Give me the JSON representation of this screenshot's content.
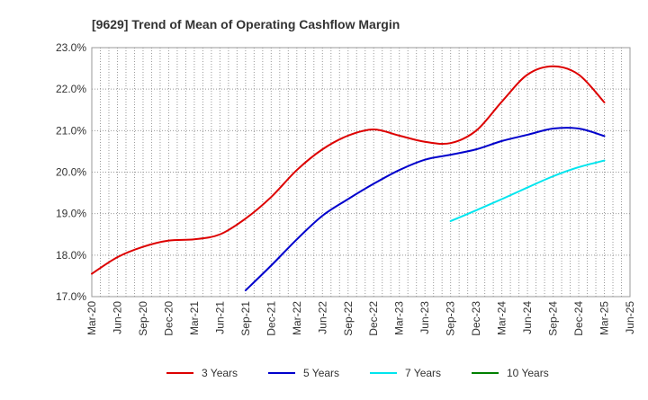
{
  "chart_data": {
    "type": "line",
    "title": "[9629]  Trend of Mean of Operating Cashflow Margin",
    "xlabel": "",
    "ylabel": "",
    "x_tick_labels": [
      "Mar-20",
      "Jun-20",
      "Sep-20",
      "Dec-20",
      "Mar-21",
      "Jun-21",
      "Sep-21",
      "Dec-21",
      "Mar-22",
      "Jun-22",
      "Sep-22",
      "Dec-22",
      "Mar-23",
      "Jun-23",
      "Sep-23",
      "Dec-23",
      "Mar-24",
      "Jun-24",
      "Sep-24",
      "Dec-24",
      "Mar-25",
      "Jun-25"
    ],
    "y_tick_labels": [
      "17.0%",
      "18.0%",
      "19.0%",
      "20.0%",
      "21.0%",
      "22.0%",
      "23.0%"
    ],
    "ylim": [
      17.0,
      23.0
    ],
    "grid": true,
    "legend_position": "bottom",
    "series": [
      {
        "name": "3 Years",
        "color": "#dd0000",
        "values": [
          17.55,
          17.95,
          18.2,
          18.35,
          18.38,
          18.5,
          18.88,
          19.4,
          20.05,
          20.55,
          20.88,
          21.03,
          20.88,
          20.73,
          20.7,
          21.0,
          21.7,
          22.35,
          22.55,
          22.35,
          21.68
        ]
      },
      {
        "name": "5 Years",
        "color": "#0000cc",
        "values": [
          null,
          null,
          null,
          null,
          null,
          null,
          17.15,
          17.75,
          18.38,
          18.95,
          19.35,
          19.72,
          20.05,
          20.3,
          20.42,
          20.55,
          20.75,
          20.9,
          21.05,
          21.05,
          20.87
        ]
      },
      {
        "name": "7 Years",
        "color": "#00e5ee",
        "values": [
          null,
          null,
          null,
          null,
          null,
          null,
          null,
          null,
          null,
          null,
          null,
          null,
          null,
          null,
          18.82,
          19.08,
          19.35,
          19.63,
          19.9,
          20.12,
          20.28
        ]
      },
      {
        "name": "10 Years",
        "color": "#008000",
        "values": [
          null,
          null,
          null,
          null,
          null,
          null,
          null,
          null,
          null,
          null,
          null,
          null,
          null,
          null,
          null,
          null,
          null,
          null,
          null,
          null,
          null
        ]
      }
    ]
  }
}
